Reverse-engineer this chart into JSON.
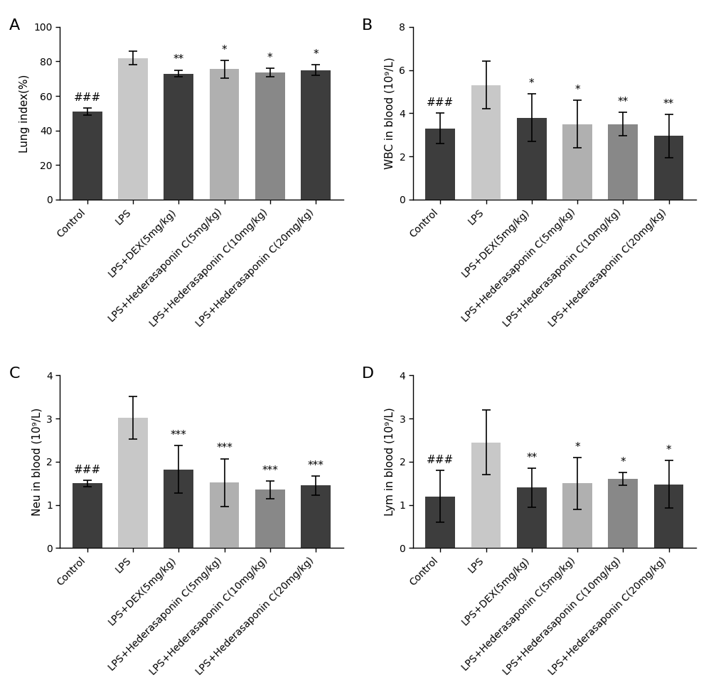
{
  "panels": [
    {
      "label": "A",
      "ylabel": "Lung index(%)",
      "ylim": [
        0,
        100
      ],
      "yticks": [
        0,
        20,
        40,
        60,
        80,
        100
      ],
      "values": [
        51,
        82,
        73,
        75.5,
        73.5,
        75
      ],
      "errors": [
        2,
        4,
        2,
        5,
        2.5,
        3
      ],
      "sig_above": [
        "###",
        "",
        "**",
        "*",
        "*",
        "*"
      ],
      "colors": [
        "#3d3d3d",
        "#c8c8c8",
        "#3d3d3d",
        "#b0b0b0",
        "#888888",
        "#3d3d3d"
      ]
    },
    {
      "label": "B",
      "ylabel": "WBC in blood (10⁹/L)",
      "ylim": [
        0,
        8
      ],
      "yticks": [
        0,
        2,
        4,
        6,
        8
      ],
      "values": [
        3.3,
        5.3,
        3.8,
        3.5,
        3.5,
        2.95
      ],
      "errors": [
        0.7,
        1.1,
        1.1,
        1.1,
        0.55,
        1.0
      ],
      "sig_above": [
        "###",
        "",
        "*",
        "*",
        "**",
        "**"
      ],
      "colors": [
        "#3d3d3d",
        "#c8c8c8",
        "#3d3d3d",
        "#b0b0b0",
        "#888888",
        "#3d3d3d"
      ]
    },
    {
      "label": "C",
      "ylabel": "Neu in blood (10⁹/L)",
      "ylim": [
        0,
        4
      ],
      "yticks": [
        0,
        1,
        2,
        3,
        4
      ],
      "values": [
        1.5,
        3.02,
        1.82,
        1.52,
        1.35,
        1.45
      ],
      "errors": [
        0.07,
        0.5,
        0.55,
        0.55,
        0.2,
        0.22
      ],
      "sig_above": [
        "###",
        "",
        "***",
        "***",
        "***",
        "***"
      ],
      "colors": [
        "#3d3d3d",
        "#c8c8c8",
        "#3d3d3d",
        "#b0b0b0",
        "#888888",
        "#3d3d3d"
      ]
    },
    {
      "label": "D",
      "ylabel": "Lym in blood (10⁹/L)",
      "ylim": [
        0,
        4
      ],
      "yticks": [
        0,
        1,
        2,
        3,
        4
      ],
      "values": [
        1.2,
        2.45,
        1.4,
        1.5,
        1.6,
        1.48
      ],
      "errors": [
        0.6,
        0.75,
        0.45,
        0.6,
        0.15,
        0.55
      ],
      "sig_above": [
        "###",
        "",
        "**",
        "*",
        "*",
        "*"
      ],
      "colors": [
        "#3d3d3d",
        "#c8c8c8",
        "#3d3d3d",
        "#b0b0b0",
        "#888888",
        "#3d3d3d"
      ]
    }
  ],
  "categories": [
    "Control",
    "LPS",
    "LPS+DEX(5mg/kg)",
    "LPS+Hederasaponin C(5mg/kg)",
    "LPS+Hederasaponin C(10mg/kg)",
    "LPS+Hederasaponin C(20mg/kg)"
  ],
  "bar_width": 0.65,
  "background_color": "#ffffff",
  "text_color": "#000000",
  "fontsize_label": 11,
  "fontsize_tick": 10,
  "fontsize_panel": 14,
  "fontsize_sig": 11,
  "lps_sig_color": "#000000",
  "sig_colors": [
    "#000000",
    "#000000",
    "#000000",
    "#000000"
  ]
}
